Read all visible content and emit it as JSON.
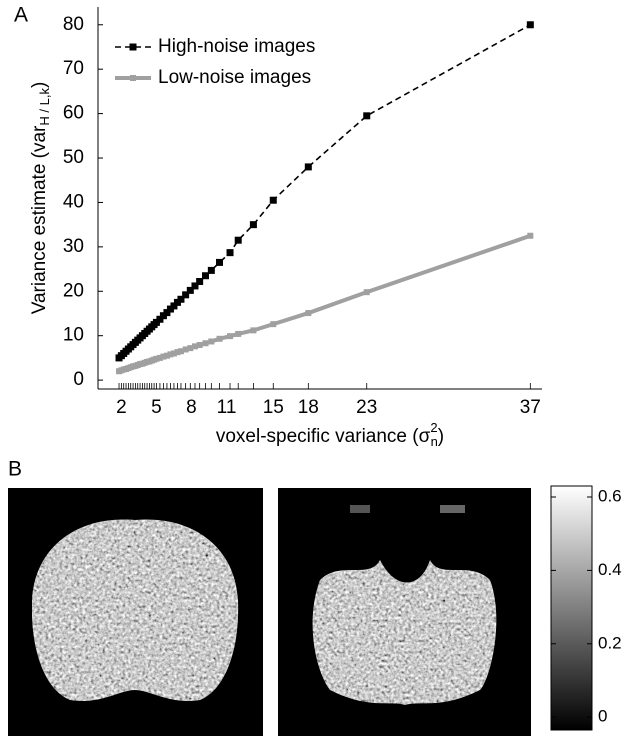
{
  "panel_labels": [
    "A",
    "B"
  ],
  "chart_data": {
    "type": "line",
    "ylabel": [
      "Variance estimate (var",
      "H / L,k",
      ")"
    ],
    "xlabel": [
      "voxel-specific variance (σ",
      "2",
      "n",
      ")"
    ],
    "x": [
      1.8,
      2.0,
      2.2,
      2.4,
      2.6,
      2.8,
      3.0,
      3.2,
      3.4,
      3.6,
      3.8,
      4.0,
      4.2,
      4.4,
      4.6,
      4.8,
      5.0,
      5.3,
      5.6,
      5.9,
      6.2,
      6.5,
      6.8,
      7.1,
      7.5,
      7.9,
      8.3,
      8.7,
      9.2,
      9.7,
      10.4,
      11.3,
      12.0,
      13.3,
      15.0,
      18.0,
      23.0,
      37.0
    ],
    "series": [
      {
        "name": "High-noise images",
        "color": "#000000",
        "dash": true,
        "values": [
          5.0,
          5.5,
          6.0,
          6.5,
          7.0,
          7.5,
          8.0,
          8.5,
          9.0,
          9.5,
          10.0,
          10.5,
          11.0,
          11.5,
          12.0,
          12.5,
          13.0,
          13.7,
          14.5,
          15.2,
          16.0,
          16.7,
          17.5,
          18.2,
          19.2,
          20.2,
          21.2,
          22.2,
          23.5,
          24.7,
          26.5,
          28.7,
          31.5,
          35.0,
          40.5,
          48.0,
          59.5,
          80.0
        ]
      },
      {
        "name": "Low-noise images",
        "color": "#a0a0a0",
        "dash": false,
        "values": [
          2.0,
          2.2,
          2.4,
          2.5,
          2.7,
          2.9,
          3.1,
          3.2,
          3.4,
          3.6,
          3.7,
          3.9,
          4.1,
          4.2,
          4.4,
          4.6,
          4.8,
          5.0,
          5.3,
          5.5,
          5.8,
          6.0,
          6.3,
          6.5,
          6.9,
          7.2,
          7.6,
          7.9,
          8.3,
          8.7,
          9.3,
          9.9,
          10.4,
          11.2,
          12.6,
          15.1,
          19.8,
          32.5
        ]
      }
    ],
    "xlim": [
      0,
      38
    ],
    "xticks": [
      2,
      5,
      8,
      11,
      15,
      18,
      23,
      37
    ],
    "ylim": [
      -2,
      84
    ],
    "yticks": [
      0,
      10,
      20,
      30,
      40,
      50,
      60,
      70,
      80
    ],
    "legend": "upper-left"
  },
  "colorbar": {
    "lim": [
      -0.035,
      0.63
    ],
    "ticks": [
      0,
      0.2,
      0.4,
      0.6
    ]
  }
}
